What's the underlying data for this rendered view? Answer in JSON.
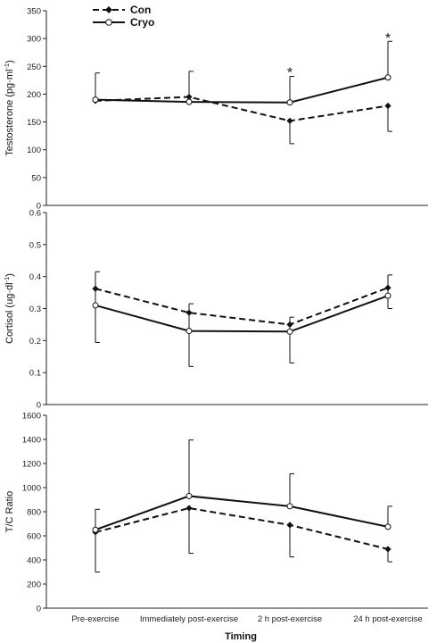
{
  "chart_data": {
    "type": "line",
    "xlabel": "Timing",
    "categories": [
      "Pre-exercise",
      "Immediately post-exercise",
      "2 h post-exercise",
      "24 h post-exercise"
    ],
    "legend": {
      "placement": "top-left",
      "entries": [
        {
          "name": "Con",
          "marker": "filled-diamond",
          "line": "dashed"
        },
        {
          "name": "Cryo",
          "marker": "open-circle",
          "line": "solid"
        }
      ]
    },
    "panels": [
      {
        "id": "testosterone",
        "ylabel": "Testosterone (pg·ml-1)",
        "ylabel_main": "Testosterone (pg·ml",
        "ylabel_sup": "-1",
        "ylabel_end": ")",
        "ylim": [
          0,
          350
        ],
        "yticks": [
          0,
          50,
          100,
          150,
          200,
          250,
          300,
          350
        ],
        "ytick_labels": [
          "0",
          "50",
          "100",
          "150",
          "200",
          "250",
          "300",
          "350"
        ],
        "series": [
          {
            "name": "Con",
            "values": [
              188,
              195,
              152,
              179
            ],
            "error": [
              null,
              null,
              41,
              46
            ]
          },
          {
            "name": "Cryo",
            "values": [
              190,
              186,
              185,
              230
            ],
            "error": [
              48,
              55,
              47,
              65
            ]
          }
        ],
        "annotations": [
          {
            "category": "2 h post-exercise",
            "text": "*",
            "at_value": 243
          },
          {
            "category": "24 h post-exercise",
            "text": "*",
            "at_value": 305
          }
        ]
      },
      {
        "id": "cortisol",
        "ylabel": "Cortisol (ug·dl-1)",
        "ylabel_main": "Cortisol (ug·dl",
        "ylabel_sup": "-1",
        "ylabel_end": ")",
        "ylim": [
          0,
          0.6
        ],
        "yticks": [
          0,
          0.1,
          0.2,
          0.3,
          0.4,
          0.5,
          0.6
        ],
        "ytick_labels": [
          "0",
          "0.1",
          "0.2",
          "0.3",
          "0.4",
          "0.5",
          "0.6"
        ],
        "series": [
          {
            "name": "Con",
            "values": [
              0.362,
              0.287,
              0.25,
              0.365
            ],
            "error": [
              0.168,
              0.168,
              0.12,
              0.065
            ]
          },
          {
            "name": "Cryo",
            "values": [
              0.31,
              0.23,
              0.228,
              0.34
            ],
            "error": [
              0.105,
              0.085,
              0.045,
              0.065
            ]
          }
        ],
        "annotations": []
      },
      {
        "id": "tc_ratio",
        "ylabel": "T/C Ratio",
        "ylabel_main": "T/C Ratio",
        "ylabel_sup": "",
        "ylabel_end": "",
        "ylim": [
          0,
          1600
        ],
        "yticks": [
          0,
          200,
          400,
          600,
          800,
          1000,
          1200,
          1400,
          1600
        ],
        "ytick_labels": [
          "0",
          "200",
          "400",
          "600",
          "800",
          "1000",
          "1200",
          "1400",
          "1600"
        ],
        "series": [
          {
            "name": "Con",
            "values": [
              630,
              830,
              690,
              490
            ],
            "error": [
              330,
              375,
              265,
              105
            ]
          },
          {
            "name": "Cryo",
            "values": [
              650,
              930,
              845,
              675
            ],
            "error": [
              170,
              465,
              270,
              170
            ]
          }
        ],
        "annotations": []
      }
    ]
  }
}
